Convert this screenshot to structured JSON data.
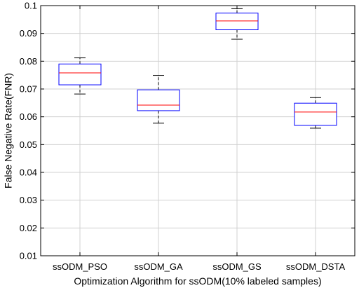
{
  "chart_data": {
    "type": "box",
    "title": "",
    "xlabel": "Optimization Algorithm for ssODM(10% labeled samples)",
    "ylabel": "False Negative Rate(FNR)",
    "ylim": [
      0.01,
      0.1
    ],
    "yticks": [
      "0.01",
      "0.02",
      "0.03",
      "0.04",
      "0.05",
      "0.06",
      "0.07",
      "0.08",
      "0.09",
      "0.1"
    ],
    "grid": true,
    "categories": [
      "ssODM_PSO",
      "ssODM_GA",
      "ssODM_GS",
      "ssODM_DSTA"
    ],
    "boxes": [
      {
        "name": "ssODM_PSO",
        "whisker_low": 0.0682,
        "q1": 0.0715,
        "median": 0.0758,
        "q3": 0.079,
        "whisker_high": 0.0812
      },
      {
        "name": "ssODM_GA",
        "whisker_low": 0.0577,
        "q1": 0.0622,
        "median": 0.0642,
        "q3": 0.0697,
        "whisker_high": 0.0749
      },
      {
        "name": "ssODM_GS",
        "whisker_low": 0.0879,
        "q1": 0.0913,
        "median": 0.0945,
        "q3": 0.0973,
        "whisker_high": 0.0989
      },
      {
        "name": "ssODM_DSTA",
        "whisker_low": 0.0559,
        "q1": 0.0569,
        "median": 0.0617,
        "q3": 0.0649,
        "whisker_high": 0.0669
      }
    ],
    "colors": {
      "box": "#0000ff",
      "median": "#ff0000",
      "whisker": "#000000",
      "grid": "#d0d0d0",
      "axis": "#000000"
    }
  }
}
